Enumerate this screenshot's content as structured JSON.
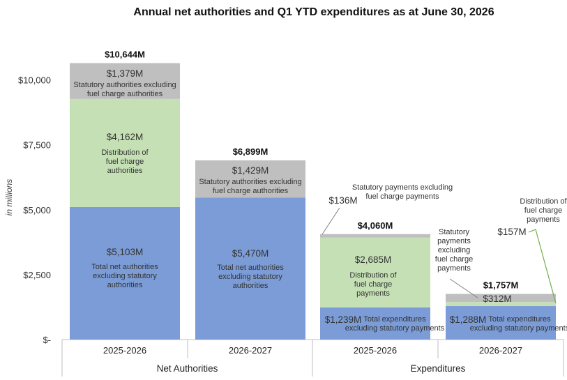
{
  "chart_data": {
    "type": "bar",
    "stacked": true,
    "title": "Annual net authorities and Q1 YTD expenditures as at June 30, 2026",
    "ylabel": "in millions",
    "xlabel": "",
    "ylim": [
      0,
      10700
    ],
    "yticks": [
      0,
      2500,
      5000,
      7500,
      10000
    ],
    "ytick_labels": [
      "$-",
      "$2,500",
      "$5,000",
      "$7,500",
      "$10,000"
    ],
    "groups": [
      "Net Authorities",
      "Expenditures"
    ],
    "categories": [
      "2025-2026",
      "2026-2027",
      "2025-2026",
      "2026-2027"
    ],
    "totals": [
      "$10,644M",
      "$6,899M",
      "$4,060M",
      "$1,757M"
    ],
    "colors": {
      "blue": "#7b9cd6",
      "green": "#c5e0b4",
      "grey": "#bfbfbf",
      "axis": "#bfbfbf",
      "leader_green": "#70ad47",
      "leader_grey": "#7f7f7f"
    },
    "bars": [
      {
        "category": "2025-2026",
        "group": "Net Authorities",
        "total_label": "$10,644M",
        "segments": [
          {
            "value": 5103,
            "color": "blue",
            "value_label": "$5,103M",
            "desc": [
              "Total net authorities",
              "excluding statutory",
              "authorities"
            ]
          },
          {
            "value": 4162,
            "color": "green",
            "value_label": "$4,162M",
            "desc": [
              "Distribution of",
              "fuel charge",
              "authorities"
            ]
          },
          {
            "value": 1379,
            "color": "grey",
            "value_label": "$1,379M",
            "desc": [
              "Statutory authorities excluding",
              "fuel charge authorities"
            ]
          }
        ]
      },
      {
        "category": "2026-2027",
        "group": "Net Authorities",
        "total_label": "$6,899M",
        "segments": [
          {
            "value": 5470,
            "color": "blue",
            "value_label": "$5,470M",
            "desc": [
              "Total net authorities",
              "excluding statutory",
              "authorities"
            ]
          },
          {
            "value": 1429,
            "color": "grey",
            "value_label": "$1,429M",
            "desc": [
              "Statutory authorities excluding",
              "fuel charge authorities"
            ]
          }
        ]
      },
      {
        "category": "2025-2026",
        "group": "Expenditures",
        "total_label": "$4,060M",
        "segments": [
          {
            "value": 1239,
            "color": "blue",
            "value_label": "$1,239M",
            "desc": [
              "Total expenditures",
              "excluding statutory payments"
            ]
          },
          {
            "value": 2685,
            "color": "green",
            "value_label": "$2,685M",
            "desc": [
              "Distribution of",
              "fuel charge",
              "payments"
            ]
          },
          {
            "value": 136,
            "color": "grey",
            "value_label": "$136M",
            "desc": [
              "Statutory payments excluding",
              "fuel charge payments"
            ]
          }
        ]
      },
      {
        "category": "2026-2027",
        "group": "Expenditures",
        "total_label": "$1,757M",
        "segments": [
          {
            "value": 1288,
            "color": "blue",
            "value_label": "$1,288M",
            "desc": [
              "Total expenditures",
              "excluding statutory payments"
            ]
          },
          {
            "value": 157,
            "color": "green",
            "value_label": "$157M",
            "desc": [
              "Distribution of",
              "fuel charge",
              "payments"
            ]
          },
          {
            "value": 312,
            "color": "grey",
            "value_label": "$312M",
            "desc": [
              "Statutory",
              "payments",
              "excluding",
              "fuel charge",
              "payments"
            ]
          }
        ]
      }
    ]
  }
}
